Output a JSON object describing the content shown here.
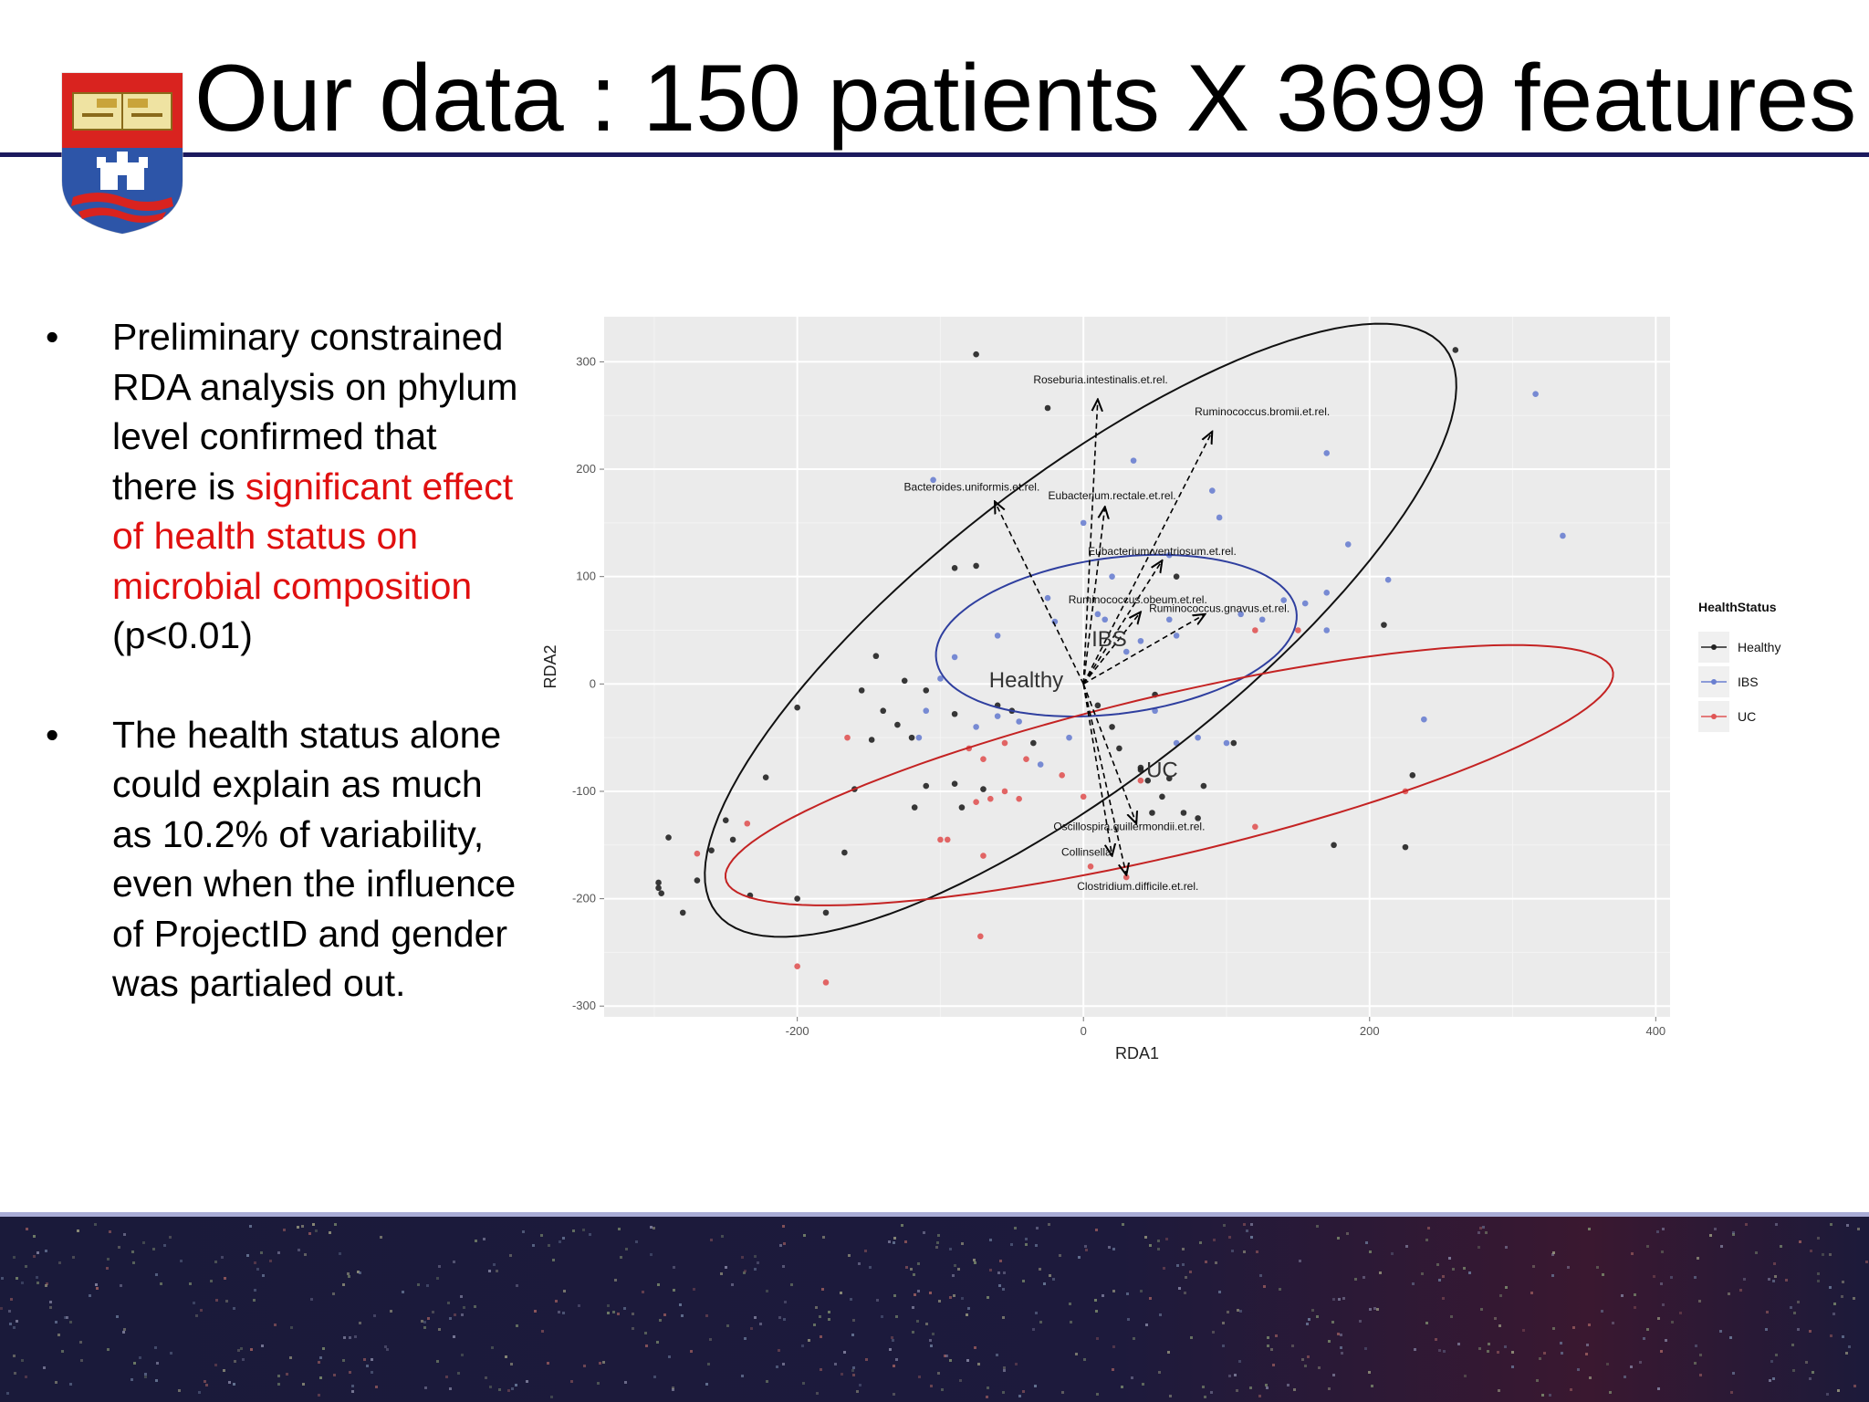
{
  "slide": {
    "title": "Our data : 150 patients X 3699 features",
    "bullets": [
      {
        "pre": "Preliminary constrained RDA analysis on phylum level confirmed that there is ",
        "highlight": "significant effect of health status on microbial composition",
        "post": " (p<0.01)"
      },
      {
        "pre": "The health status alone could explain as much as 10.2% of variability, even when the influence of ProjectID and gender was partialed out."
      }
    ]
  },
  "colors": {
    "title_rule": "#1c1a5e",
    "highlight": "#e01010",
    "healthy": "#222222",
    "ibs": "#6a7fd0",
    "uc": "#e05555",
    "ellipse_healthy": "#111111",
    "ellipse_ibs": "#2f3f9f",
    "ellipse_uc": "#c42323",
    "panel_bg": "#ebebeb"
  },
  "chart_data": {
    "type": "scatter",
    "xlabel": "RDA1",
    "ylabel": "RDA2",
    "xlim": [
      -335,
      410
    ],
    "ylim": [
      -310,
      342
    ],
    "xticks": [
      -200,
      0,
      200,
      400
    ],
    "yticks": [
      -300,
      -200,
      -100,
      0,
      100,
      200,
      300
    ],
    "grid": true,
    "legend": {
      "title": "HealthStatus",
      "position": "right",
      "entries": [
        "Healthy",
        "IBS",
        "UC"
      ]
    },
    "series": [
      {
        "name": "Healthy",
        "points": [
          [
            -75,
            307
          ],
          [
            -25,
            257
          ],
          [
            260,
            311
          ],
          [
            -90,
            108
          ],
          [
            -75,
            110
          ],
          [
            -145,
            26
          ],
          [
            -155,
            -6
          ],
          [
            -200,
            -22
          ],
          [
            -125,
            3
          ],
          [
            -140,
            -25
          ],
          [
            -130,
            -38
          ],
          [
            -110,
            -6
          ],
          [
            -90,
            -28
          ],
          [
            -120,
            -50
          ],
          [
            -148,
            -52
          ],
          [
            -110,
            -95
          ],
          [
            -90,
            -93
          ],
          [
            -70,
            -98
          ],
          [
            -160,
            -98
          ],
          [
            -118,
            -115
          ],
          [
            -85,
            -115
          ],
          [
            -222,
            -87
          ],
          [
            -250,
            -127
          ],
          [
            -260,
            -155
          ],
          [
            -245,
            -145
          ],
          [
            -290,
            -143
          ],
          [
            -297,
            -185
          ],
          [
            -297,
            -190
          ],
          [
            -295,
            -195
          ],
          [
            -270,
            -183
          ],
          [
            -280,
            -213
          ],
          [
            -233,
            -197
          ],
          [
            -200,
            -200
          ],
          [
            -180,
            -213
          ],
          [
            -167,
            -157
          ],
          [
            -60,
            -20
          ],
          [
            -50,
            -25
          ],
          [
            -35,
            -55
          ],
          [
            10,
            -20
          ],
          [
            20,
            -40
          ],
          [
            25,
            -60
          ],
          [
            40,
            -80
          ],
          [
            45,
            -90
          ],
          [
            55,
            -105
          ],
          [
            48,
            -120
          ],
          [
            80,
            -125
          ],
          [
            70,
            -120
          ],
          [
            40,
            -78
          ],
          [
            60,
            -88
          ],
          [
            105,
            -55
          ],
          [
            84,
            -95
          ],
          [
            175,
            -150
          ],
          [
            225,
            -152
          ],
          [
            230,
            -85
          ],
          [
            210,
            55
          ],
          [
            65,
            100
          ],
          [
            50,
            -10
          ]
        ]
      },
      {
        "name": "IBS",
        "points": [
          [
            -105,
            190
          ],
          [
            35,
            208
          ],
          [
            90,
            180
          ],
          [
            95,
            155
          ],
          [
            170,
            215
          ],
          [
            185,
            130
          ],
          [
            335,
            138
          ],
          [
            316,
            270
          ],
          [
            213,
            97
          ],
          [
            170,
            85
          ],
          [
            155,
            75
          ],
          [
            140,
            78
          ],
          [
            125,
            60
          ],
          [
            170,
            50
          ],
          [
            110,
            65
          ],
          [
            60,
            60
          ],
          [
            65,
            45
          ],
          [
            40,
            40
          ],
          [
            10,
            65
          ],
          [
            15,
            60
          ],
          [
            -20,
            58
          ],
          [
            -60,
            45
          ],
          [
            -25,
            80
          ],
          [
            0,
            150
          ],
          [
            60,
            120
          ],
          [
            -90,
            25
          ],
          [
            -100,
            5
          ],
          [
            -110,
            -25
          ],
          [
            -115,
            -50
          ],
          [
            -75,
            -40
          ],
          [
            -60,
            -30
          ],
          [
            -45,
            -35
          ],
          [
            -10,
            -50
          ],
          [
            -30,
            -75
          ],
          [
            50,
            -25
          ],
          [
            65,
            -55
          ],
          [
            80,
            -50
          ],
          [
            100,
            -55
          ],
          [
            238,
            -33
          ],
          [
            20,
            100
          ],
          [
            30,
            30
          ]
        ]
      },
      {
        "name": "UC",
        "points": [
          [
            -165,
            -50
          ],
          [
            -270,
            -158
          ],
          [
            -235,
            -130
          ],
          [
            -95,
            -145
          ],
          [
            -70,
            -160
          ],
          [
            -75,
            -110
          ],
          [
            -65,
            -107
          ],
          [
            -55,
            -100
          ],
          [
            -45,
            -107
          ],
          [
            -80,
            -60
          ],
          [
            -70,
            -70
          ],
          [
            -55,
            -55
          ],
          [
            -40,
            -70
          ],
          [
            -15,
            -85
          ],
          [
            0,
            -105
          ],
          [
            5,
            -170
          ],
          [
            -200,
            -263
          ],
          [
            -180,
            -278
          ],
          [
            -72,
            -235
          ],
          [
            30,
            -180
          ],
          [
            120,
            -133
          ],
          [
            225,
            -100
          ],
          [
            120,
            50
          ],
          [
            150,
            50
          ],
          [
            40,
            -90
          ],
          [
            -100,
            -145
          ]
        ]
      }
    ],
    "ellipses": [
      {
        "name": "Healthy",
        "cx": -2,
        "cy": 50,
        "rx": 368,
        "ry": 123,
        "angle": 48
      },
      {
        "name": "IBS",
        "cx": 23,
        "cy": 45,
        "rx": 128,
        "ry": 72,
        "angle": 12
      },
      {
        "name": "UC",
        "cx": 60,
        "cy": -85,
        "rx": 325,
        "ry": 73,
        "angle": 17.8
      }
    ],
    "group_labels": [
      {
        "text": "Healthy",
        "x": -40,
        "y": -3
      },
      {
        "text": "IBS",
        "x": 18,
        "y": 35
      },
      {
        "text": "UC",
        "x": 55,
        "y": -87
      }
    ],
    "arrows": [
      {
        "label": "Roseburia.intestinalis.et.rel.",
        "x": 10,
        "y": 265,
        "lx": 12,
        "ly": 280
      },
      {
        "label": "Ruminococcus.bromii.et.rel.",
        "x": 90,
        "y": 235,
        "lx": 125,
        "ly": 250
      },
      {
        "label": "Bacteroides.uniformis.et.rel.",
        "x": -62,
        "y": 170,
        "lx": -78,
        "ly": 180
      },
      {
        "label": "Eubacterium.rectale.et.rel.",
        "x": 15,
        "y": 165,
        "lx": 20,
        "ly": 172
      },
      {
        "label": "Eubacterium.ventriosum.et.rel.",
        "x": 55,
        "y": 115,
        "lx": 55,
        "ly": 120
      },
      {
        "label": "Ruminococcus.obeum.et.rel.",
        "x": 40,
        "y": 67,
        "lx": 38,
        "ly": 75
      },
      {
        "label": "Ruminococcus.gnavus.et.rel.",
        "x": 85,
        "y": 65,
        "lx": 95,
        "ly": 67
      },
      {
        "label": "Oscillospira.guillermondii.et.rel.",
        "x": 37,
        "y": -130,
        "lx": 32,
        "ly": -136
      },
      {
        "label": "Collinsella",
        "x": 20,
        "y": -160,
        "lx": 2,
        "ly": -160
      },
      {
        "label": "Clostridium.difficile.et.rel.",
        "x": 30,
        "y": -178,
        "lx": 38,
        "ly": -192
      }
    ]
  }
}
